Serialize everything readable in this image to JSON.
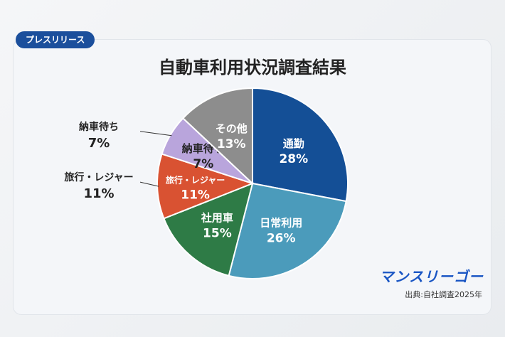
{
  "badge": "プレスリリース",
  "brand": "マンスリーゴー",
  "source": "出典:自社調査2025年",
  "chart_data": {
    "type": "pie",
    "title": "自動車利用状況調査結果",
    "slices": [
      {
        "label": "通勤",
        "value": 28,
        "display": "28%",
        "color": "#144f96",
        "text_color": "#ffffff",
        "label_outside": false
      },
      {
        "label": "日常利用",
        "value": 26,
        "display": "26%",
        "color": "#4b9bbb",
        "text_color": "#ffffff",
        "label_outside": false
      },
      {
        "label": "社用車",
        "value": 15,
        "display": "15%",
        "color": "#2e7b46",
        "text_color": "#ffffff",
        "label_outside": false
      },
      {
        "label": "旅行・レジャー",
        "value": 11,
        "display": "11%",
        "color": "#d95232",
        "text_color": "#ffffff",
        "label_outside": true
      },
      {
        "label": "納車待ち",
        "value": 7,
        "display": "7%",
        "color": "#b9a5dc",
        "text_color": "#222222",
        "label_outside": true
      },
      {
        "label": "その他",
        "value": 13,
        "display": "13%",
        "color": "#8d8d8d",
        "text_color": "#ffffff",
        "label_outside": false
      }
    ],
    "start": "12 o'clock",
    "direction": "clockwise",
    "legend": "none"
  }
}
